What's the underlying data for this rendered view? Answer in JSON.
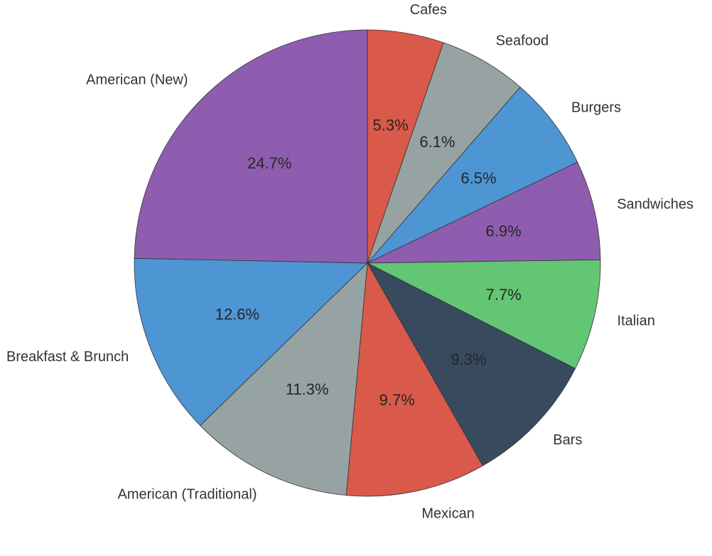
{
  "chart_data": {
    "type": "pie",
    "title": "",
    "start": "top",
    "direction": "clockwise",
    "slices": [
      {
        "label": "Cafes",
        "value": 5.3,
        "pct_label": "5.3%",
        "color": "#d9594a"
      },
      {
        "label": "Seafood",
        "value": 6.1,
        "pct_label": "6.1%",
        "color": "#97a3a3"
      },
      {
        "label": "Burgers",
        "value": 6.5,
        "pct_label": "6.5%",
        "color": "#4e95d4"
      },
      {
        "label": "Sandwiches",
        "value": 6.9,
        "pct_label": "6.9%",
        "color": "#8e5daf"
      },
      {
        "label": "Italian",
        "value": 7.7,
        "pct_label": "7.7%",
        "color": "#62c674"
      },
      {
        "label": "Bars",
        "value": 9.3,
        "pct_label": "9.3%",
        "color": "#384a5e"
      },
      {
        "label": "Mexican",
        "value": 9.7,
        "pct_label": "9.7%",
        "color": "#d9594a"
      },
      {
        "label": "American (Traditional)",
        "value": 11.3,
        "pct_label": "11.3%",
        "color": "#97a3a3"
      },
      {
        "label": "Breakfast & Brunch",
        "value": 12.6,
        "pct_label": "12.6%",
        "color": "#4e95d4"
      },
      {
        "label": "American (New)",
        "value": 24.7,
        "pct_label": "24.7%",
        "color": "#8e5daf"
      }
    ]
  }
}
